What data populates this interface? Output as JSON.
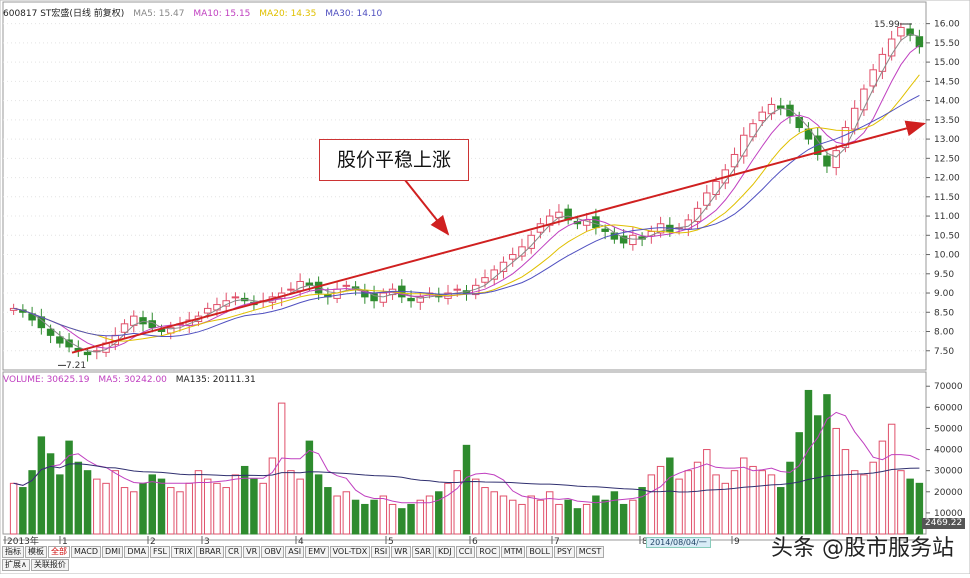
{
  "header": {
    "security": "600817 ST宏盛(日线 前复权)",
    "ma5": "MA5: 15.47",
    "ma10": "MA10: 15.15",
    "ma20": "MA20: 14.35",
    "ma30": "MA30: 14.10"
  },
  "volume_header": {
    "volume": "VOLUME: 30625.19",
    "ma5": "MA5: 30242.00",
    "ma135": "MA135: 20111.31"
  },
  "colors": {
    "up": "#e0506a",
    "down": "#2e8b2e",
    "ma5": "#888888",
    "ma10": "#c040c0",
    "ma20": "#e0c000",
    "ma30": "#5050c0",
    "trend": "#d02020"
  },
  "annotation": {
    "text": "股价平稳上涨"
  },
  "badges": {
    "date": "2014/08/04/一",
    "volume": "2469.22"
  },
  "watermark": "头条 @股市服务站",
  "tabs": [
    "指标",
    "模板",
    "全部",
    "MACD",
    "DMI",
    "DMA",
    "FSL",
    "TRIX",
    "BRAR",
    "CR",
    "VR",
    "OBV",
    "ASI",
    "EMV",
    "VOL-TDX",
    "RSI",
    "WR",
    "SAR",
    "KDJ",
    "CCI",
    "ROC",
    "MTM",
    "BOLL",
    "PSY",
    "MCST"
  ],
  "tabs_bottom": [
    "扩展∧",
    "关联报价"
  ],
  "chart_data": {
    "type": "candlestick",
    "price_axis": {
      "ylim": [
        7.0,
        16.25
      ],
      "ticks": [
        "7.50",
        "8.00",
        "8.50",
        "9.00",
        "9.50",
        "10.00",
        "10.50",
        "11.00",
        "11.50",
        "12.00",
        "12.50",
        "13.00",
        "13.50",
        "14.00",
        "14.50",
        "15.00",
        "15.50",
        "16.00"
      ]
    },
    "volume_axis": {
      "ylim": [
        0,
        72000
      ],
      "ticks": [
        "10000",
        "20000",
        "30000",
        "40000",
        "50000",
        "60000",
        "70000"
      ]
    },
    "x_labels": [
      "2013年",
      "1",
      "2",
      "3",
      "4",
      "5",
      "6",
      "7",
      "8",
      "9"
    ],
    "high_label": "15.99",
    "low_label": "7.21",
    "close_path": [
      8.6,
      8.5,
      8.3,
      8.1,
      7.9,
      7.7,
      7.6,
      7.5,
      7.4,
      7.5,
      7.7,
      7.9,
      8.2,
      8.4,
      8.2,
      8.1,
      8.0,
      8.1,
      8.2,
      8.3,
      8.4,
      8.6,
      8.7,
      8.8,
      8.9,
      8.8,
      8.7,
      8.8,
      8.9,
      9.0,
      9.1,
      9.3,
      9.2,
      9.0,
      8.9,
      9.1,
      9.2,
      9.1,
      8.9,
      8.8,
      9.0,
      9.1,
      8.9,
      8.8,
      8.9,
      9.0,
      8.9,
      9.0,
      9.1,
      9.0,
      9.2,
      9.4,
      9.6,
      9.8,
      10.0,
      10.2,
      10.5,
      10.8,
      11.0,
      11.1,
      10.9,
      10.8,
      10.9,
      10.7,
      10.6,
      10.4,
      10.3,
      10.5,
      10.4,
      10.6,
      10.8,
      10.6,
      10.7,
      10.9,
      11.2,
      11.6,
      11.9,
      12.2,
      12.6,
      13.1,
      13.4,
      13.7,
      13.9,
      13.8,
      13.6,
      13.3,
      13.0,
      12.6,
      12.3,
      12.7,
      13.3,
      13.8,
      14.3,
      14.8,
      15.2,
      15.6,
      15.9,
      15.7,
      15.4
    ],
    "volume_path": [
      24000,
      22000,
      30000,
      46000,
      38000,
      28000,
      44000,
      34000,
      30000,
      26000,
      24000,
      30000,
      22000,
      20000,
      24000,
      28000,
      26000,
      22000,
      20000,
      24000,
      30000,
      26000,
      24000,
      22000,
      28000,
      32000,
      26000,
      24000,
      36000,
      62000,
      30000,
      26000,
      44000,
      28000,
      22000,
      18000,
      20000,
      16000,
      14000,
      16000,
      18000,
      14000,
      12000,
      14000,
      16000,
      18000,
      20000,
      24000,
      30000,
      42000,
      26000,
      22000,
      20000,
      18000,
      16000,
      14000,
      18000,
      16000,
      20000,
      14000,
      16000,
      12000,
      14000,
      18000,
      16000,
      20000,
      14000,
      16000,
      22000,
      28000,
      32000,
      36000,
      26000,
      30000,
      34000,
      40000,
      28000,
      24000,
      30000,
      36000,
      32000,
      30000,
      28000,
      22000,
      34000,
      48000,
      68000,
      56000,
      66000,
      50000,
      40000,
      30000,
      28000,
      34000,
      44000,
      52000,
      30000,
      26000,
      24000
    ]
  }
}
